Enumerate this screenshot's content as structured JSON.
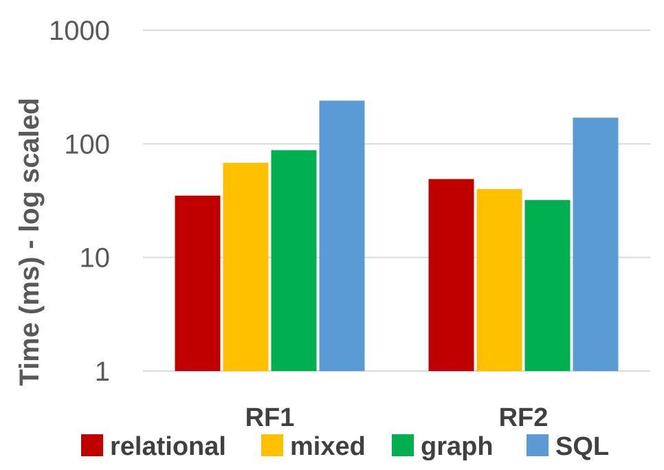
{
  "chart_data": {
    "type": "bar",
    "title": "",
    "ylabel": "Time (ms) - log scaled",
    "xlabel": "",
    "yscale": "log",
    "ylim": [
      1,
      1000
    ],
    "yticks": [
      1,
      10,
      100,
      1000
    ],
    "ytick_labels": [
      "1",
      "10",
      "100",
      "1000"
    ],
    "grid": true,
    "legend_position": "bottom",
    "categories": [
      "RF1",
      "RF2"
    ],
    "series": [
      {
        "name": "relational",
        "color": "#c00000",
        "values": [
          35,
          49
        ]
      },
      {
        "name": "mixed",
        "color": "#ffc000",
        "values": [
          68,
          40
        ]
      },
      {
        "name": "graph",
        "color": "#00b050",
        "values": [
          88,
          32
        ]
      },
      {
        "name": "SQL",
        "color": "#5b9bd5",
        "values": [
          240,
          170
        ]
      }
    ]
  }
}
